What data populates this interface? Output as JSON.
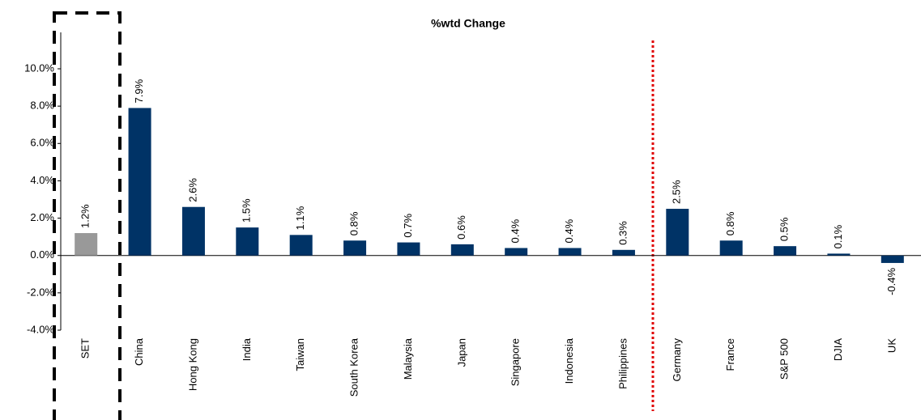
{
  "chart_data": {
    "type": "bar",
    "title": "%wtd Change",
    "categories": [
      "SET",
      "China",
      "Hong Kong",
      "India",
      "Taiwan",
      "South Korea",
      "Malaysia",
      "Japan",
      "Singapore",
      "Indonesia",
      "Philippines",
      "Germany",
      "France",
      "S&P 500",
      "DJIA",
      "UK"
    ],
    "values": [
      1.2,
      7.9,
      2.6,
      1.5,
      1.1,
      0.8,
      0.7,
      0.6,
      0.4,
      0.4,
      0.3,
      2.5,
      0.8,
      0.5,
      0.1,
      -0.4
    ],
    "value_labels": [
      "1.2%",
      "7.9%",
      "2.6%",
      "1.5%",
      "1.1%",
      "0.8%",
      "0.7%",
      "0.6%",
      "0.4%",
      "0.4%",
      "0.3%",
      "2.5%",
      "0.8%",
      "0.5%",
      "0.1%",
      "-0.4%"
    ],
    "colors": [
      "#999999",
      "#003366",
      "#003366",
      "#003366",
      "#003366",
      "#003366",
      "#003366",
      "#003366",
      "#003366",
      "#003366",
      "#003366",
      "#003366",
      "#003366",
      "#003366",
      "#003366",
      "#003366"
    ],
    "ylim": [
      -4,
      10
    ],
    "yticks": [
      {
        "value": -4,
        "label": "-4.0%"
      },
      {
        "value": -2,
        "label": "-2.0%"
      },
      {
        "value": 0,
        "label": "0.0%"
      },
      {
        "value": 2,
        "label": "2.0%"
      },
      {
        "value": 4,
        "label": "4.0%"
      },
      {
        "value": 6,
        "label": "6.0%"
      },
      {
        "value": 8,
        "label": "8.0%"
      },
      {
        "value": 10,
        "label": "10.0%"
      }
    ],
    "grid": false
  }
}
